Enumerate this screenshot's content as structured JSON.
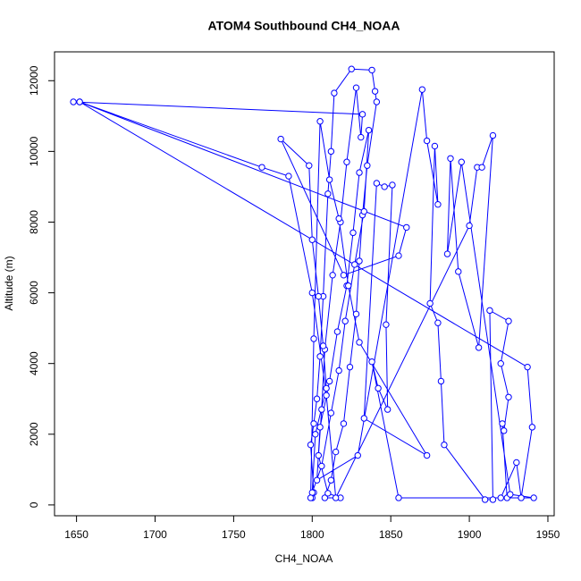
{
  "chart_data": {
    "type": "line",
    "title": "ATOM4 Southbound CH4_NOAA",
    "x_label": "CH4_NOAA",
    "y_label": "Altitude (m)",
    "color": "#0000ff",
    "markers": true,
    "xlim": [
      1636,
      1954
    ],
    "ylim": [
      -306,
      12816
    ],
    "xticks": [
      1650,
      1700,
      1750,
      1800,
      1850,
      1900,
      1950
    ],
    "yticks": [
      0,
      2000,
      4000,
      6000,
      8000,
      10000,
      12000
    ],
    "x": [
      1800,
      1801,
      1799,
      1801,
      1803,
      1805,
      1807,
      1810,
      1812,
      1814,
      1825,
      1838,
      1840,
      1841,
      1835,
      1832,
      1830,
      1828,
      1824,
      1820,
      1815,
      1812,
      1808,
      1818,
      1810,
      1804,
      1806,
      1808,
      1813,
      1818,
      1822,
      1828,
      1831,
      1832,
      1648,
      1652,
      1860,
      1855,
      1820,
      1780,
      1798,
      1800,
      1804,
      1807,
      1809,
      1802,
      1800,
      1806,
      1812,
      1817,
      1821,
      1827,
      1833,
      1836,
      1830,
      1826,
      1822,
      1816,
      1811,
      1805,
      1803,
      1829,
      1870,
      1873,
      1880,
      1878,
      1875,
      1880,
      1882,
      1884,
      1910,
      1915,
      1913,
      1925,
      1920,
      1925,
      1922,
      1921,
      1924,
      1920,
      1930,
      1933,
      1940,
      1937,
      1652,
      1768,
      1785,
      1800,
      1809,
      1815,
      1900,
      1905,
      1908,
      1915,
      1906,
      1893,
      1888,
      1886,
      1895,
      1926,
      1941,
      1855,
      1838,
      1842,
      1848,
      1847,
      1851,
      1846,
      1841,
      1833,
      1873,
      1830,
      1823,
      1817,
      1811,
      1805,
      1801,
      1799
    ],
    "values": [
      200,
      350,
      1700,
      2300,
      3000,
      4200,
      5900,
      8800,
      10000,
      11650,
      12330,
      12300,
      11700,
      11400,
      9600,
      8200,
      6900,
      5400,
      3900,
      2300,
      1500,
      700,
      200,
      200,
      330,
      1400,
      2700,
      4400,
      6500,
      8000,
      9700,
      11800,
      10400,
      11050,
      11400,
      11400,
      7850,
      7050,
      6500,
      10350,
      9600,
      7500,
      5900,
      4500,
      3300,
      2000,
      350,
      1100,
      2600,
      3800,
      5200,
      6800,
      8300,
      10600,
      9400,
      7700,
      6200,
      4900,
      3500,
      2200,
      700,
      1400,
      11750,
      10300,
      8500,
      10150,
      5700,
      5150,
      3500,
      1700,
      150,
      150,
      5500,
      5200,
      4000,
      3050,
      2100,
      2300,
      200,
      200,
      1200,
      200,
      2200,
      3900,
      11400,
      9550,
      9300,
      6000,
      3100,
      200,
      7900,
      9550,
      9550,
      10450,
      4450,
      6600,
      9800,
      7100,
      9700,
      300,
      200,
      200,
      4050,
      3300,
      2700,
      5100,
      9050,
      9000,
      9100,
      2450,
      1400,
      4600,
      6200,
      8100,
      9200,
      10850,
      4700,
      200
    ]
  }
}
